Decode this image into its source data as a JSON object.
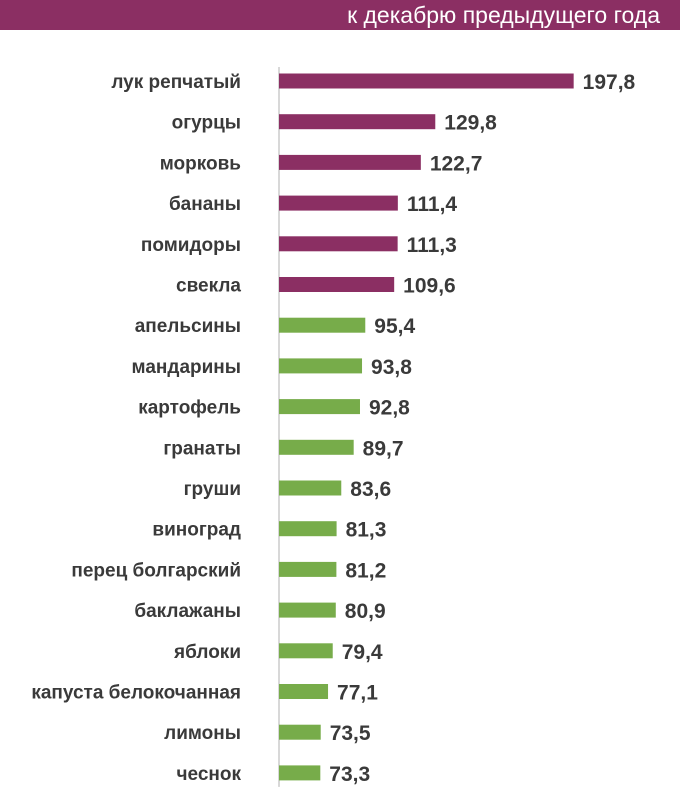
{
  "header": {
    "title": "к декабрю предыдущего года"
  },
  "colors": {
    "header": "#8b2f63",
    "high": "#8b2f63",
    "low": "#77ac4a",
    "text": "#3a3a3a"
  },
  "chart_data": {
    "type": "bar",
    "orientation": "horizontal",
    "title": "к декабрю предыдущего года",
    "threshold": 100,
    "categories": [
      "лук репчатый",
      "огурцы",
      "морковь",
      "бананы",
      "помидоры",
      "свекла",
      "апельсины",
      "мандарины",
      "картофель",
      "гранаты",
      "груши",
      "виноград",
      "перец болгарский",
      "баклажаны",
      "яблоки",
      "капуста белокочанная",
      "лимоны",
      "чеснок"
    ],
    "values": [
      197.8,
      129.8,
      122.7,
      111.4,
      111.3,
      109.6,
      95.4,
      93.8,
      92.8,
      89.7,
      83.6,
      81.3,
      81.2,
      80.9,
      79.4,
      77.1,
      73.5,
      73.3
    ],
    "value_labels": [
      "197,8",
      "129,8",
      "122,7",
      "111,4",
      "111,3",
      "109,6",
      "95,4",
      "93,8",
      "92,8",
      "89,7",
      "83,6",
      "81,3",
      "81,2",
      "80,9",
      "79,4",
      "77,1",
      "73,5",
      "73,3"
    ]
  }
}
